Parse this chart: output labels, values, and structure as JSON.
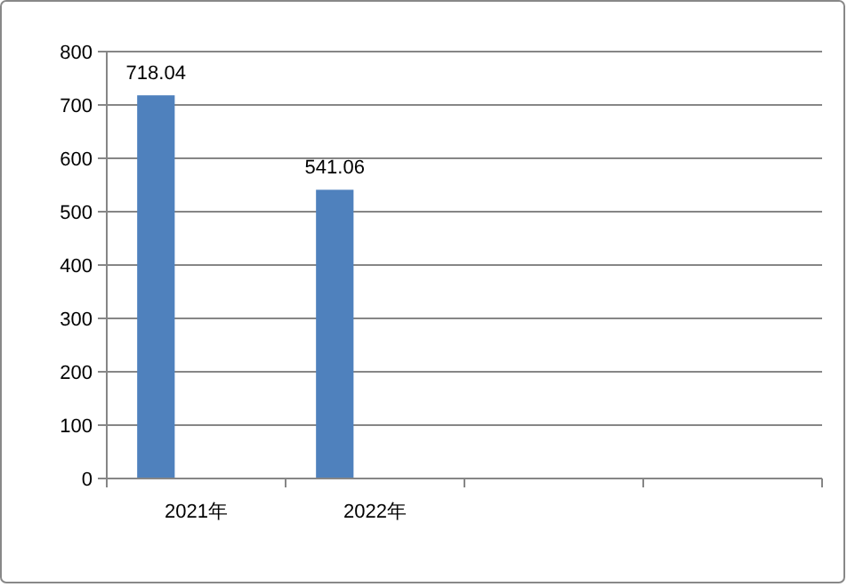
{
  "chart_data": {
    "type": "bar",
    "categories": [
      "2021年",
      "2022年",
      null,
      null
    ],
    "values": [
      718.04,
      541.06,
      null,
      null
    ],
    "color": "#4f81bd",
    "ylim": [
      0,
      800
    ],
    "yticks": [
      0,
      100,
      200,
      300,
      400,
      500,
      600,
      700,
      800
    ],
    "grid": "y",
    "data_labels": true
  }
}
